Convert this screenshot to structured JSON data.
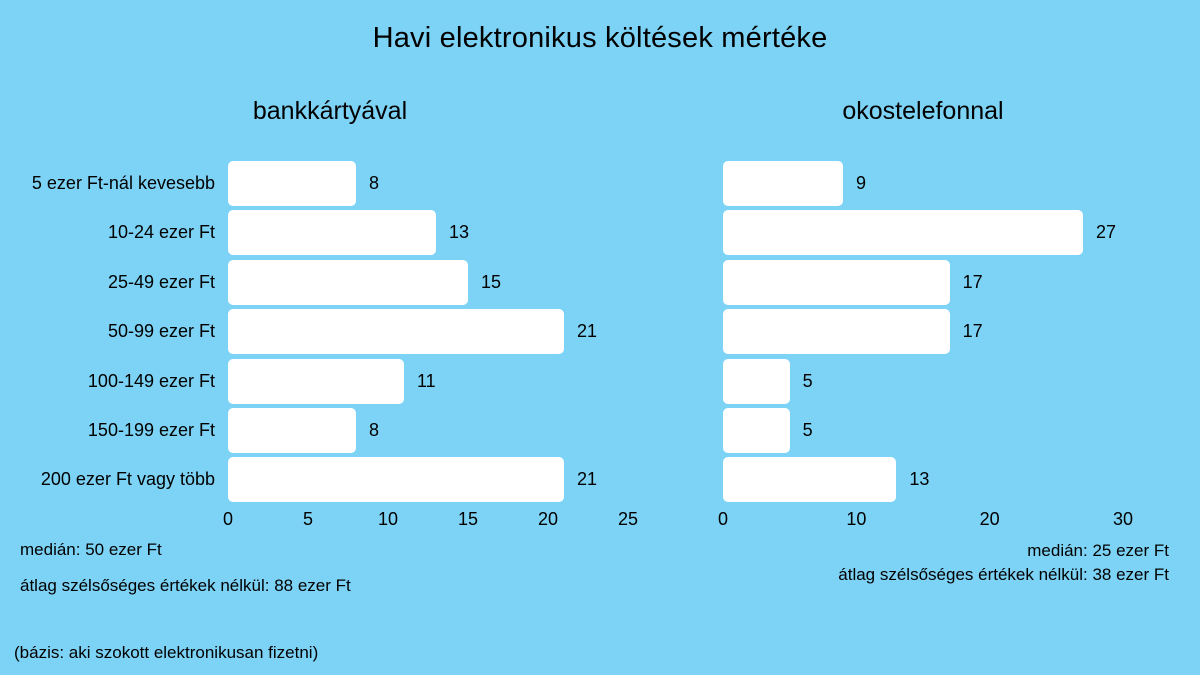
{
  "title": "Havi elektronikus költések mértéke",
  "base_note": "(bázis: aki szokott elektronikusan fizetni)",
  "colors": {
    "background": "#7DD3F6",
    "bar": "#FFFFFF",
    "text": "#000000"
  },
  "chart_data": [
    {
      "type": "bar",
      "orientation": "horizontal",
      "title": "bankkártyával",
      "categories": [
        "5 ezer Ft-nál kevesebb",
        "10-24 ezer Ft",
        "25-49 ezer Ft",
        "50-99 ezer Ft",
        "100-149 ezer Ft",
        "150-199 ezer Ft",
        "200 ezer Ft vagy több"
      ],
      "values": [
        8,
        13,
        15,
        21,
        11,
        8,
        21
      ],
      "xlim": [
        0,
        25
      ],
      "xticks": [
        0,
        5,
        10,
        15,
        20,
        25
      ],
      "grid": false,
      "legend": "none",
      "notes": [
        "medián: 50 ezer Ft",
        "átlag szélsőséges értékek nélkül: 88 ezer Ft"
      ]
    },
    {
      "type": "bar",
      "orientation": "horizontal",
      "title": "okostelefonnal",
      "categories": [
        "5 ezer Ft-nál kevesebb",
        "10-24 ezer Ft",
        "25-49 ezer Ft",
        "50-99 ezer Ft",
        "100-149 ezer Ft",
        "150-199 ezer Ft",
        "200 ezer Ft vagy több"
      ],
      "values": [
        9,
        27,
        17,
        17,
        5,
        5,
        13
      ],
      "xlim": [
        0,
        30
      ],
      "xticks": [
        0,
        10,
        20,
        30
      ],
      "grid": false,
      "legend": "none",
      "notes": [
        "medián: 25 ezer Ft",
        "átlag szélsőséges értékek nélkül: 38 ezer Ft"
      ]
    }
  ]
}
